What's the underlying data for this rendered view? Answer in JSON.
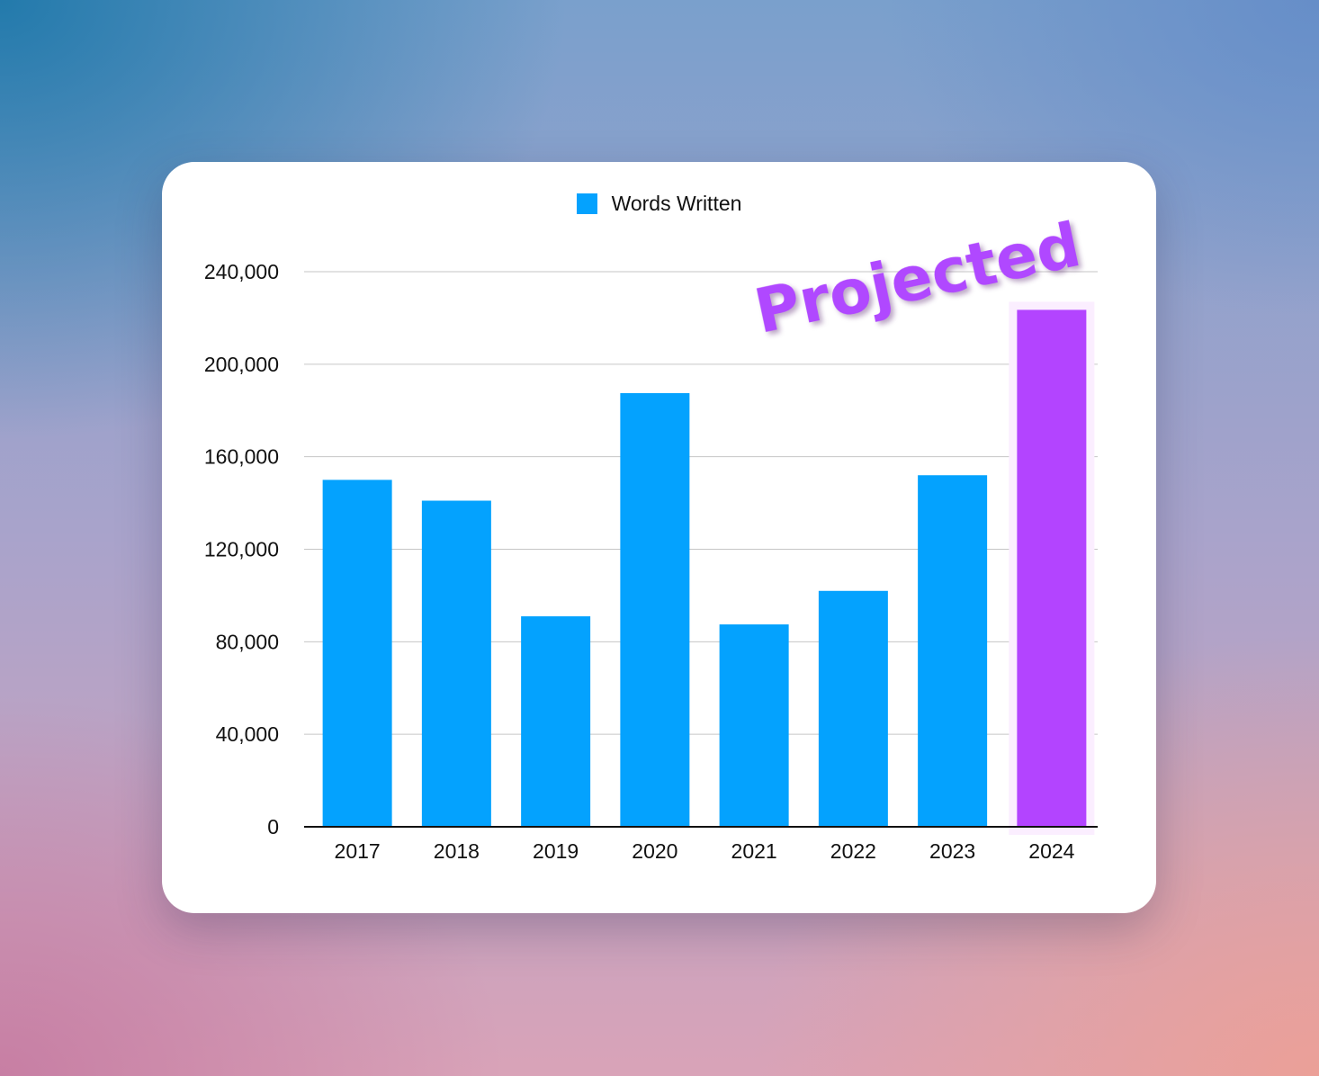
{
  "chart_data": {
    "type": "bar",
    "categories": [
      "2017",
      "2018",
      "2019",
      "2020",
      "2021",
      "2022",
      "2023",
      "2024"
    ],
    "series": [
      {
        "name": "Words Written",
        "values": [
          150000,
          141000,
          91000,
          187500,
          87500,
          102000,
          152000,
          223500
        ]
      }
    ],
    "highlight": {
      "category": "2024",
      "color": "#b344ff"
    },
    "ylim": [
      0,
      240000
    ],
    "yticks": [
      "0",
      "40,000",
      "80,000",
      "120,000",
      "160,000",
      "200,000",
      "240,000"
    ],
    "ytick_values": [
      0,
      40000,
      80000,
      120000,
      160000,
      200000,
      240000
    ],
    "grid": true,
    "legend_position": "top-center",
    "annotation": "Projected",
    "colors": {
      "bar": "#04a2fe",
      "highlight": "#b344ff",
      "annotation": "#b048ff"
    }
  }
}
